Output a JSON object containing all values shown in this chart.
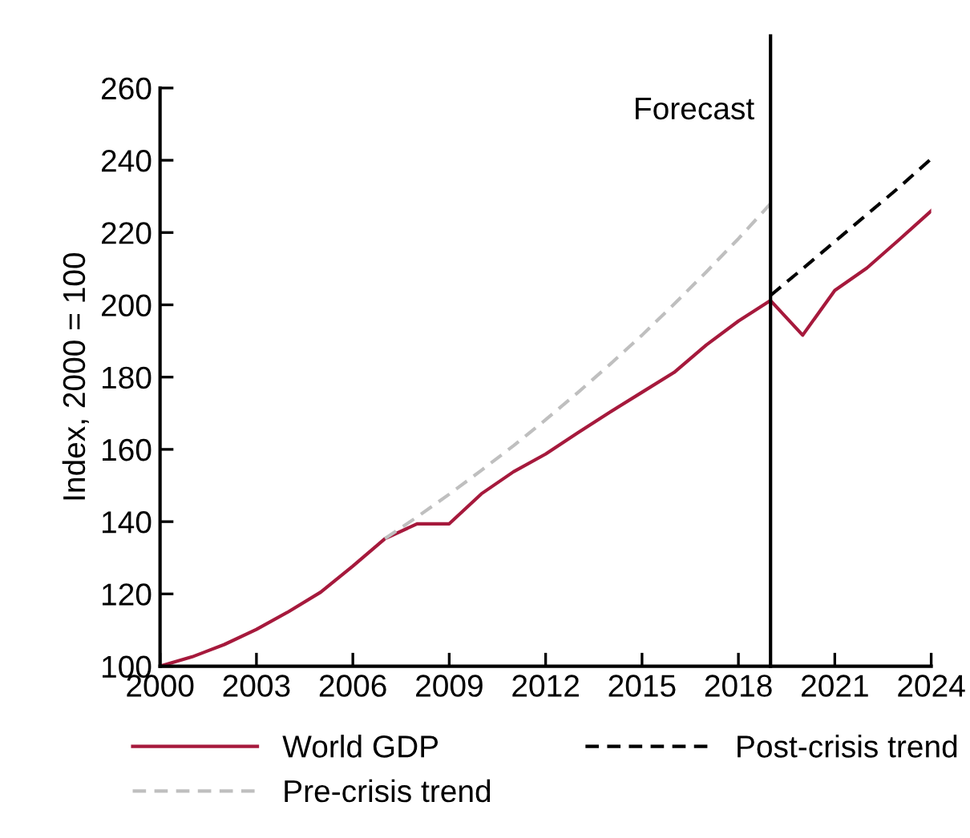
{
  "chart_data": {
    "type": "line",
    "ylabel": "Index, 2000 = 100",
    "xlim": [
      2000,
      2024
    ],
    "xticks": [
      2000,
      2003,
      2006,
      2009,
      2012,
      2015,
      2018,
      2021,
      2024
    ],
    "ylim": [
      100,
      260
    ],
    "yticks": [
      100,
      120,
      140,
      160,
      180,
      200,
      220,
      240,
      260
    ],
    "grid": false,
    "legend": "bottom",
    "marker": "none",
    "series": [
      {
        "name": "World GDP",
        "color": "#a6193c",
        "line_style": "solid",
        "x": [
          2000,
          2001,
          2002,
          2003,
          2004,
          2005,
          2006,
          2007,
          2008,
          2009,
          2010,
          2011,
          2012,
          2013,
          2014,
          2015,
          2016,
          2017,
          2018,
          2019,
          2020,
          2021,
          2022,
          2023,
          2024
        ],
        "values": [
          100,
          102.6,
          106,
          110.2,
          115.1,
          120.5,
          127.7,
          135.3,
          139.4,
          139.4,
          147.7,
          153.8,
          158.7,
          164.6,
          170.3,
          175.8,
          181.3,
          188.9,
          195.5,
          201.2,
          191.6,
          204,
          210.2,
          218,
          226
        ]
      },
      {
        "name": "Pre-crisis trend",
        "color": "#bfbfbf",
        "line_style": "dashed",
        "x": [
          2007,
          2008,
          2009,
          2010,
          2011,
          2012,
          2013,
          2014,
          2015,
          2016,
          2017,
          2018,
          2019
        ],
        "values": [
          135.3,
          141.3,
          147.6,
          154.2,
          161.0,
          168.2,
          175.7,
          183.5,
          191.6,
          200.2,
          209.1,
          218.3,
          228
        ]
      },
      {
        "name": "Post-crisis trend",
        "color": "#000000",
        "line_style": "dashed",
        "x": [
          2019,
          2020,
          2021,
          2022,
          2023,
          2024
        ],
        "values": [
          202.6,
          210,
          217.5,
          225,
          232.5,
          240.4
        ]
      }
    ],
    "ref_lines": [
      {
        "axis": "x",
        "value": 2019,
        "label": "Forecast",
        "color": "#000000",
        "line_style": "solid"
      }
    ]
  }
}
